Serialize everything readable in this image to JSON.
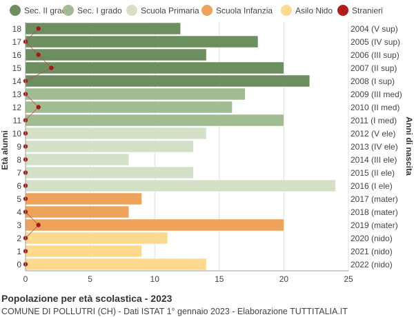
{
  "chart_data": {
    "type": "bar",
    "orientation": "horizontal",
    "title": "Popolazione per età scolastica - 2023",
    "subtitle": "COMUNE DI POLLUTRI (CH) - Dati ISTAT 1° gennaio 2023 - Elaborazione TUTTITALIA.IT",
    "ylabel_left": "Età alunni",
    "ylabel_right": "Anni di nascita",
    "xlim": [
      0,
      25
    ],
    "xticks": [
      0,
      5,
      10,
      15,
      20,
      25
    ],
    "grid": true,
    "legend_position": "top",
    "legend": [
      {
        "label": "Sec. II grado",
        "color": "#6b8f5e",
        "kind": "bar"
      },
      {
        "label": "Sec. I grado",
        "color": "#a2bc92",
        "kind": "bar"
      },
      {
        "label": "Scuola Primaria",
        "color": "#d5e0c8",
        "kind": "bar"
      },
      {
        "label": "Scuola Infanzia",
        "color": "#eda45a",
        "kind": "bar"
      },
      {
        "label": "Asilo Nido",
        "color": "#fdd98e",
        "kind": "bar"
      },
      {
        "label": "Stranieri",
        "color": "#b01c1c",
        "kind": "dot"
      }
    ],
    "rows": [
      {
        "age": "18",
        "year": "2004 (V sup)",
        "value": 12,
        "stranieri": 1,
        "group": 0
      },
      {
        "age": "17",
        "year": "2005 (IV sup)",
        "value": 18,
        "stranieri": 0,
        "group": 0
      },
      {
        "age": "16",
        "year": "2006 (III sup)",
        "value": 14,
        "stranieri": 1,
        "group": 0
      },
      {
        "age": "15",
        "year": "2007 (II sup)",
        "value": 20,
        "stranieri": 2,
        "group": 0
      },
      {
        "age": "14",
        "year": "2008 (I sup)",
        "value": 22,
        "stranieri": 0,
        "group": 0
      },
      {
        "age": "13",
        "year": "2009 (III med)",
        "value": 17,
        "stranieri": 0,
        "group": 1
      },
      {
        "age": "12",
        "year": "2010 (II med)",
        "value": 16,
        "stranieri": 1,
        "group": 1
      },
      {
        "age": "11",
        "year": "2011 (I med)",
        "value": 20,
        "stranieri": 0,
        "group": 1
      },
      {
        "age": "10",
        "year": "2012 (V ele)",
        "value": 14,
        "stranieri": 0,
        "group": 2
      },
      {
        "age": "9",
        "year": "2013 (IV ele)",
        "value": 13,
        "stranieri": 0,
        "group": 2
      },
      {
        "age": "8",
        "year": "2014 (III ele)",
        "value": 8,
        "stranieri": 0,
        "group": 2
      },
      {
        "age": "7",
        "year": "2015 (II ele)",
        "value": 13,
        "stranieri": 0,
        "group": 2
      },
      {
        "age": "6",
        "year": "2016 (I ele)",
        "value": 24,
        "stranieri": 0,
        "group": 2
      },
      {
        "age": "5",
        "year": "2017 (mater)",
        "value": 9,
        "stranieri": 0,
        "group": 3
      },
      {
        "age": "4",
        "year": "2018 (mater)",
        "value": 8,
        "stranieri": 0,
        "group": 3
      },
      {
        "age": "3",
        "year": "2019 (mater)",
        "value": 20,
        "stranieri": 1,
        "group": 3
      },
      {
        "age": "2",
        "year": "2020 (nido)",
        "value": 11,
        "stranieri": 0,
        "group": 4
      },
      {
        "age": "1",
        "year": "2021 (nido)",
        "value": 9,
        "stranieri": 0,
        "group": 4
      },
      {
        "age": "0",
        "year": "2022 (nido)",
        "value": 14,
        "stranieri": 0,
        "group": 4
      }
    ]
  }
}
